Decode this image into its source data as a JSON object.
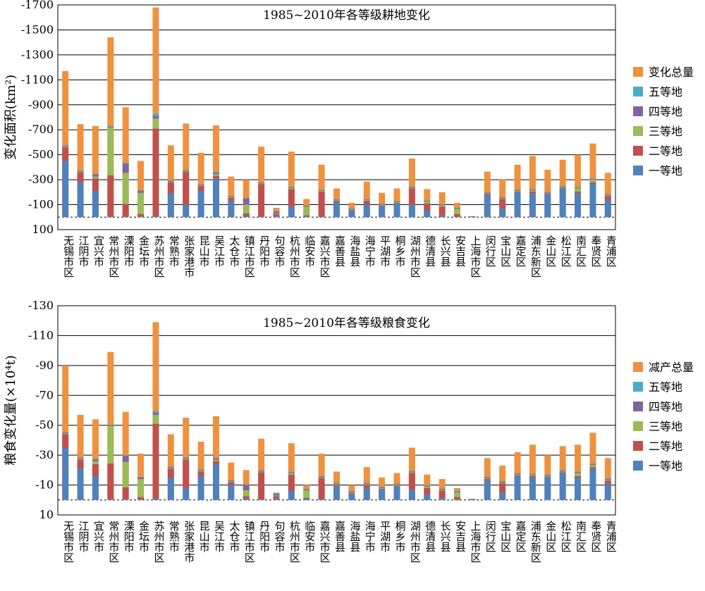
{
  "categories": [
    "无锡市区",
    "江阴市",
    "宜兴市",
    "常州市区",
    "溧阳市",
    "金坛市",
    "苏州市区",
    "常熟市",
    "张家港市",
    "昆山市",
    "吴江市",
    "太仓市",
    "镇江市区",
    "丹阳市",
    "句容市",
    "杭州市区",
    "临安市",
    "嘉兴市区",
    "嘉善县",
    "海盐县",
    "海宁市",
    "平湖市",
    "桐乡市",
    "湖州市区",
    "德清县",
    "长兴县",
    "安吉县",
    "上海市区",
    "闵行区",
    "宝山区",
    "嘉定区",
    "浦东新区",
    "金山区",
    "松江区",
    "南汇区",
    "奉贤区",
    "青浦区"
  ],
  "colors": {
    "total": "#F0913E",
    "grade5": "#4BACC6",
    "grade4": "#8064A2",
    "grade3": "#9BBB59",
    "grade2": "#C0504D",
    "grade1": "#4F81BD"
  },
  "chart_data": [
    {
      "type": "bar",
      "title": "1985~2010年各等级耕地变化",
      "ylabel": "变化面积(km²)",
      "ylim": [
        100,
        -1700
      ],
      "yticks": [
        100,
        -100,
        -300,
        -500,
        -700,
        -900,
        -1100,
        -1300,
        -1500,
        -1700
      ],
      "yticklabels": [
        "100",
        "-100",
        "-300",
        "-500",
        "-700",
        "-900",
        "-1100",
        "-1300",
        "-1500",
        "-1700"
      ],
      "legend": [
        "变化总量",
        "五等地",
        "四等地",
        "三等地",
        "二等地",
        "一等地"
      ],
      "legend_position": "right",
      "series": [
        {
          "name": "一等地",
          "values": [
            -450,
            -280,
            -210,
            -5,
            -5,
            -5,
            -10,
            -190,
            -100,
            -210,
            -310,
            -130,
            -10,
            -5,
            -10,
            -85,
            -10,
            -5,
            -120,
            -50,
            -100,
            -90,
            -110,
            -100,
            -55,
            -15,
            -5,
            -5,
            -175,
            -70,
            -200,
            -190,
            -185,
            -230,
            -190,
            -270,
            -140
          ]
        },
        {
          "name": "二等地",
          "values": [
            -110,
            -80,
            -100,
            -330,
            -100,
            -20,
            -700,
            -90,
            -265,
            -40,
            -20,
            -25,
            -20,
            -260,
            -15,
            -140,
            -5,
            -200,
            -10,
            -5,
            -30,
            -5,
            -5,
            -130,
            -55,
            -70,
            -20,
            -3,
            -10,
            -75,
            -5,
            -15,
            -5,
            -5,
            -15,
            -10,
            -30
          ]
        },
        {
          "name": "三等地",
          "values": [
            -5,
            -5,
            -15,
            -380,
            -250,
            -170,
            -80,
            -5,
            -5,
            -5,
            -15,
            -5,
            -70,
            -5,
            -5,
            -10,
            -70,
            -5,
            -5,
            -5,
            -5,
            -5,
            -5,
            -5,
            -15,
            -10,
            -40,
            0,
            -5,
            -5,
            -5,
            -10,
            -5,
            -5,
            -25,
            -20,
            -5
          ]
        },
        {
          "name": "四等地",
          "values": [
            -5,
            -5,
            -15,
            -5,
            -75,
            -15,
            -20,
            -5,
            -5,
            -5,
            -10,
            -5,
            -50,
            -5,
            -15,
            -5,
            -5,
            -5,
            -5,
            -5,
            -5,
            -5,
            -5,
            -5,
            -5,
            -5,
            -5,
            0,
            -5,
            -5,
            -5,
            -5,
            -5,
            -5,
            -5,
            -5,
            -5
          ]
        },
        {
          "name": "五等地",
          "values": [
            -5,
            -5,
            -5,
            -10,
            -5,
            -5,
            -20,
            -5,
            -5,
            -5,
            -10,
            -5,
            -5,
            -5,
            -5,
            -5,
            -5,
            -5,
            -5,
            -5,
            -5,
            -5,
            -5,
            -5,
            -5,
            -5,
            -5,
            0,
            -5,
            -5,
            -5,
            -5,
            -5,
            -5,
            -5,
            -5,
            -5
          ]
        },
        {
          "name": "变化总量",
          "values": [
            -1170,
            -745,
            -730,
            -1440,
            -880,
            -450,
            -1680,
            -575,
            -750,
            -515,
            -735,
            -325,
            -300,
            -565,
            -75,
            -525,
            -145,
            -420,
            -230,
            -115,
            -285,
            -195,
            -230,
            -470,
            -225,
            -200,
            -115,
            -5,
            -365,
            -305,
            -420,
            -490,
            -380,
            -460,
            -500,
            -590,
            -355
          ]
        }
      ]
    },
    {
      "type": "bar",
      "title": "1985~2010年各等级粮食变化",
      "ylabel": "粮食变化量(×10⁴t)",
      "ylim": [
        10,
        -130
      ],
      "yticks": [
        10,
        -10,
        -30,
        -50,
        -70,
        -90,
        -110,
        -130
      ],
      "yticklabels": [
        "10",
        "-10",
        "-30",
        "-50",
        "-70",
        "-90",
        "-110",
        "-130"
      ],
      "legend": [
        "减产总量",
        "五等地",
        "四等地",
        "三等地",
        "二等地",
        "一等地"
      ],
      "legend_position": "right",
      "series": [
        {
          "name": "一等地",
          "values": [
            -35,
            -21,
            -16,
            -0.5,
            -0.5,
            -0.5,
            -1,
            -15,
            -8,
            -16,
            -24,
            -10,
            -1,
            -0.5,
            -1,
            -6,
            -1,
            -0.5,
            -9,
            -4,
            -8,
            -7,
            -9,
            -7,
            -4,
            -1.2,
            -0.5,
            -0.5,
            -13,
            -5,
            -16,
            -15,
            -15,
            -18,
            -15,
            -21,
            -11
          ]
        },
        {
          "name": "二等地",
          "values": [
            -9,
            -6,
            -8,
            -24,
            -8,
            -1.5,
            -50,
            -6,
            -19,
            -3,
            -2,
            -2,
            -1.5,
            -18,
            -1.5,
            -11,
            -0.5,
            -14,
            -1,
            -0.5,
            -2,
            -0.5,
            -0.5,
            -11,
            -4,
            -5,
            -1.5,
            -0.3,
            -1,
            -6,
            -0.5,
            -1,
            -0.5,
            -0.5,
            -1,
            -1,
            -2
          ]
        },
        {
          "name": "三等地",
          "values": [
            -0.5,
            -0.5,
            -2,
            -25,
            -17,
            -12,
            -6,
            -0.5,
            -0.5,
            -0.5,
            -1,
            -0.5,
            -4,
            -0.5,
            -0.5,
            -1,
            -5,
            -0.5,
            -0.5,
            -0.5,
            -0.5,
            -0.5,
            -0.5,
            -0.5,
            -1,
            -0.5,
            -3,
            0,
            -0.5,
            -0.5,
            -0.5,
            -0.5,
            -0.5,
            -0.5,
            -2,
            -1.5,
            -0.5
          ]
        },
        {
          "name": "四等地",
          "values": [
            -0.5,
            -0.5,
            -1,
            -0.5,
            -4,
            -1,
            -1.5,
            -0.5,
            -0.5,
            -0.5,
            -0.8,
            -0.5,
            -3.5,
            -0.5,
            -1,
            -0.5,
            -0.5,
            -0.5,
            -0.5,
            -0.5,
            -0.5,
            -0.5,
            -0.5,
            -0.5,
            -0.5,
            -0.5,
            -0.5,
            0,
            -0.5,
            -0.5,
            -0.5,
            -0.5,
            -0.5,
            -0.5,
            -0.5,
            -0.5,
            -0.5
          ]
        },
        {
          "name": "五等地",
          "values": [
            -0.5,
            -0.5,
            -0.5,
            -0.5,
            -0.5,
            -0.5,
            -1,
            -0.5,
            -0.5,
            -0.5,
            -0.5,
            -0.5,
            -0.5,
            -0.5,
            -0.5,
            -0.5,
            -0.5,
            -0.5,
            -0.5,
            -0.5,
            -0.5,
            -0.5,
            -0.5,
            -0.5,
            -0.5,
            -0.5,
            -0.5,
            0,
            -0.5,
            -0.5,
            -0.5,
            -0.5,
            -0.5,
            -0.5,
            -0.5,
            -0.5,
            -0.5
          ]
        },
        {
          "name": "减产总量",
          "values": [
            -90,
            -57,
            -54,
            -99,
            -59,
            -31,
            -119,
            -44,
            -55,
            -39,
            -56,
            -25,
            -20,
            -41,
            -5,
            -38,
            -10,
            -31,
            -19,
            -10,
            -22,
            -15,
            -18,
            -35,
            -17,
            -14,
            -8,
            -0.5,
            -28,
            -23,
            -32,
            -37,
            -30,
            -36,
            -37,
            -45,
            -28
          ]
        }
      ]
    }
  ]
}
